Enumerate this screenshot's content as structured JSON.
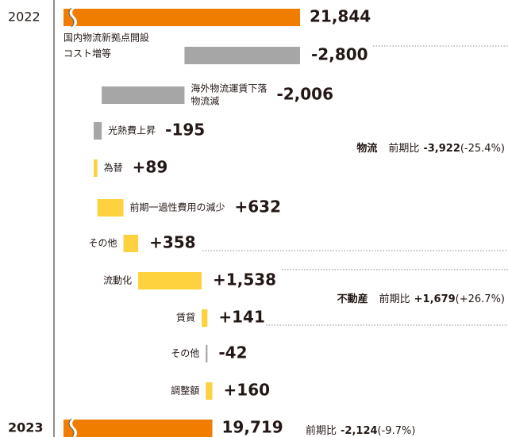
{
  "chart_data": {
    "type": "waterfall",
    "categories": [
      "2022",
      [
        "国内物流新拠点開設",
        "コスト増等"
      ],
      [
        "海外物流運賃下落",
        "物流減"
      ],
      "光熱費上昇",
      "為替",
      "前期一過性費用の減少",
      "その他",
      "流動化",
      "賃貸",
      "その他",
      "調整額",
      "2023"
    ],
    "values": [
      21844,
      -2800,
      -2006,
      -195,
      89,
      632,
      358,
      1538,
      141,
      -42,
      160,
      19719
    ],
    "value_labels": [
      "21,844",
      "-2,800",
      "-2,006",
      "-195",
      "+89",
      "+632",
      "+358",
      "+1,538",
      "+141",
      "-42",
      "+160",
      "19,719"
    ],
    "totals": [
      0,
      11
    ],
    "colors": {
      "total": "#f07d00",
      "negative": "#a6a6a6",
      "positive": "#fdd23e"
    },
    "annotations": [
      {
        "label": "物流",
        "text": "前期比",
        "value": "-3,922",
        "pct": "(-25.4%)"
      },
      {
        "label": "不動産",
        "text": "前期比",
        "value": "+1,679",
        "pct": "(+26.7%)"
      },
      {
        "text": "前期比",
        "value": "-2,124",
        "pct": "(-9.7%)"
      }
    ]
  }
}
